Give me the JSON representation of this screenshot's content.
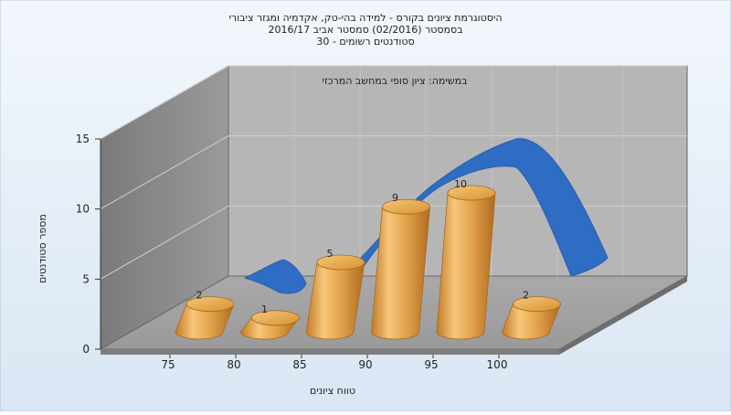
{
  "chart_data": {
    "type": "bar",
    "title_lines": [
      "היסטוגרמת ציונים בקורס - למידה בהי-טק, אקדמיה ומגזר ציבורי",
      "בסמסטר  (02/2016)  סמסטר אביב 2016/17",
      "סטודנטים רשומים - 30"
    ],
    "subtitle": "במשימה: ציון סופי במחשב המרכזי",
    "xlabel": "טווח ציונים",
    "ylabel": "מספר סטודנטים",
    "x_ticks": [
      "75",
      "80",
      "85",
      "90",
      "95",
      "100"
    ],
    "y_ticks": [
      "0",
      "5",
      "10",
      "15"
    ],
    "ylim": [
      0,
      15
    ],
    "bar_color": "#e0a040",
    "curve_color": "#2f6cc4",
    "grid": true,
    "bars": [
      {
        "value": 2,
        "label": "2"
      },
      {
        "value": 1,
        "label": "1"
      },
      {
        "value": 5,
        "label": "5"
      },
      {
        "value": 9,
        "label": "9"
      },
      {
        "value": 10,
        "label": "10"
      },
      {
        "value": 2,
        "label": "2"
      }
    ]
  }
}
